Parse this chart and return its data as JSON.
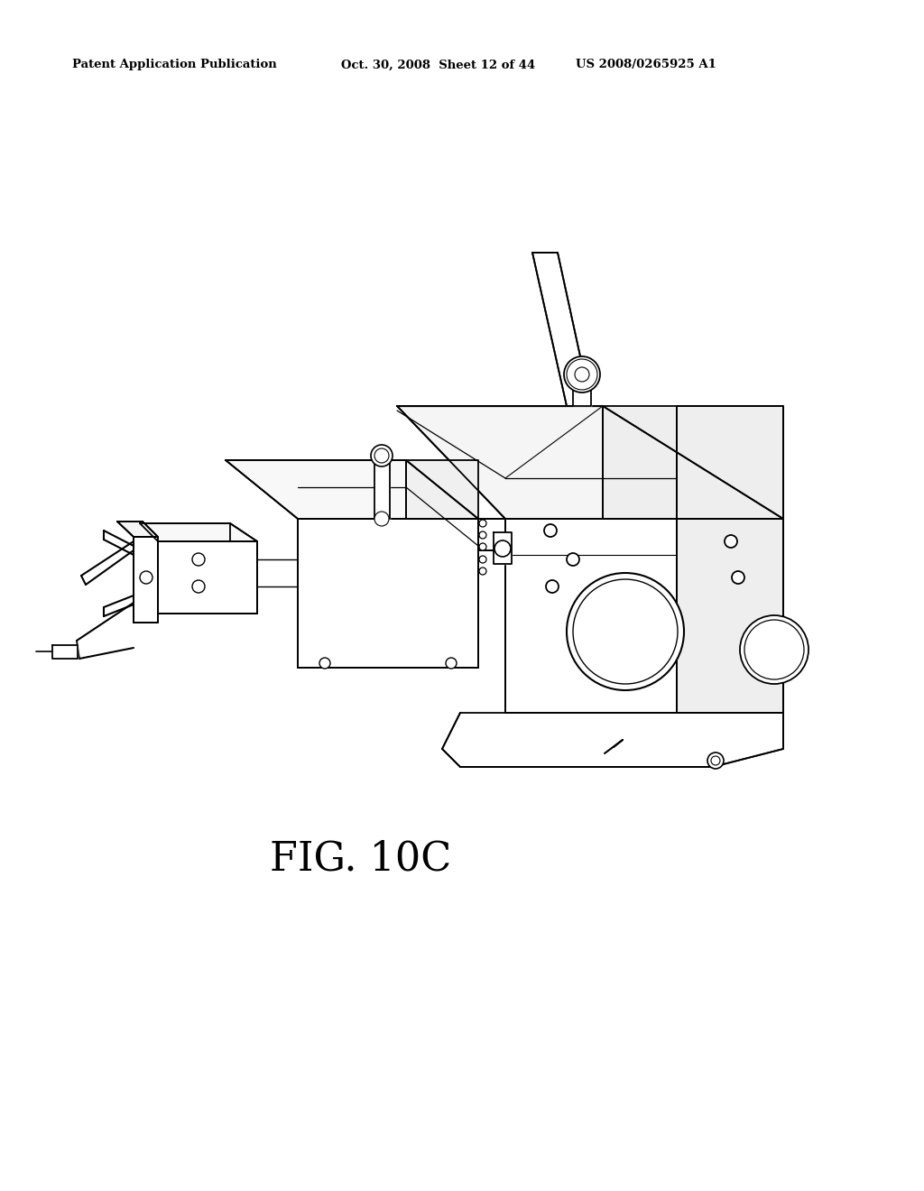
{
  "title": "FIG. 10C",
  "header_left": "Patent Application Publication",
  "header_center": "Oct. 30, 2008  Sheet 12 of 44",
  "header_right": "US 2008/0265925 A1",
  "bg_color": "#ffffff",
  "line_color": "#000000",
  "header_fontsize": 9.5,
  "title_fontsize": 32,
  "fig_width": 10.24,
  "fig_height": 13.2
}
